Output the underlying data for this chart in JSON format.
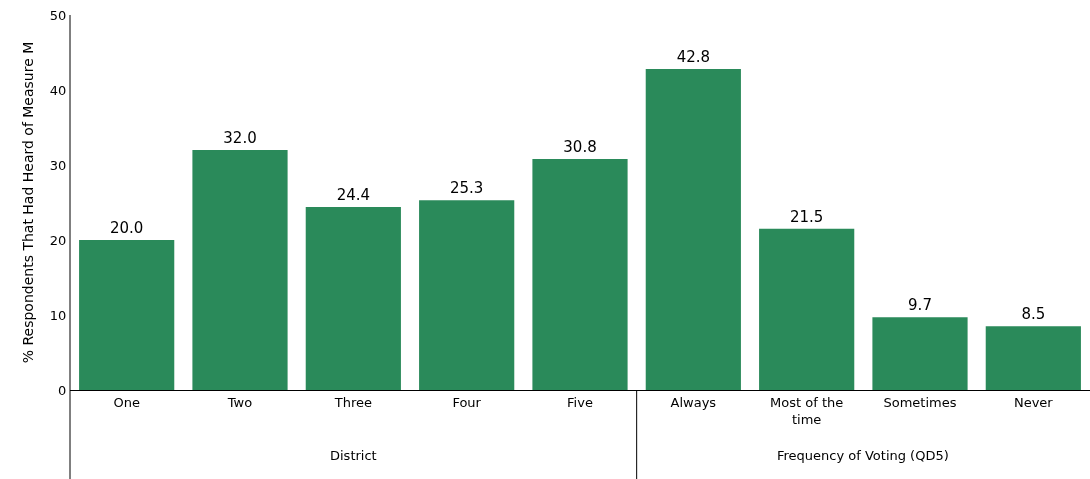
{
  "chart_data": {
    "type": "bar",
    "ylabel": "% Respondents That Had Heard of Measure M",
    "categories": [
      "One",
      "Two",
      "Three",
      "Four",
      "Five",
      "Always",
      "Most of the time",
      "Sometimes",
      "Never"
    ],
    "values": [
      20.0,
      32.0,
      24.4,
      25.3,
      30.8,
      42.8,
      21.5,
      9.7,
      8.5
    ],
    "value_labels": [
      "20.0",
      "32.0",
      "24.4",
      "25.3",
      "30.8",
      "42.8",
      "21.5",
      "9.7",
      "8.5"
    ],
    "color": "#2a8a5a",
    "ylim": [
      0,
      50
    ],
    "yticks": [
      0,
      10,
      20,
      30,
      40,
      50
    ],
    "grid": false,
    "annotations": [
      "District",
      "Frequency of Voting (QD5)"
    ]
  }
}
